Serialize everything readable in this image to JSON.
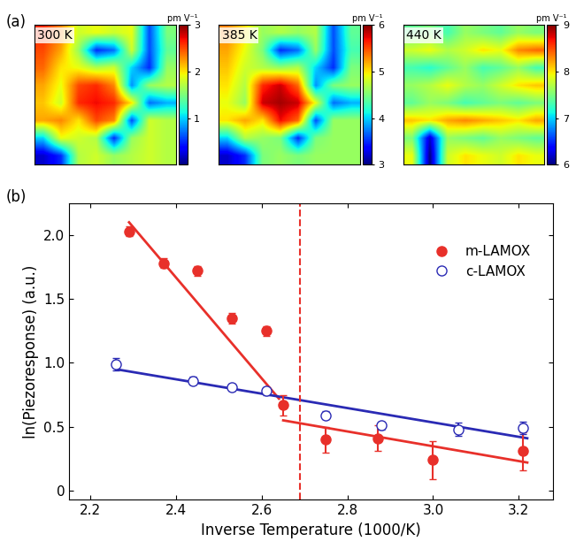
{
  "panel_labels": [
    "(a)",
    "(b)"
  ],
  "chart_data": [
    {
      "type": "heatmap",
      "title": "300 K",
      "colorbar_label": "pm V⁻¹",
      "colorbar_range": [
        0,
        3
      ],
      "colorbar_ticks": [
        1,
        2,
        3
      ],
      "cells": [
        [
          2.6,
          2.3,
          1.8,
          1.9,
          1.8,
          1.9,
          0.6,
          1.5
        ],
        [
          2.5,
          2.2,
          1.6,
          0.5,
          0.7,
          1.8,
          0.6,
          1.4
        ],
        [
          2.4,
          2.0,
          1.9,
          1.7,
          1.8,
          1.0,
          0.5,
          1.6
        ],
        [
          2.2,
          1.9,
          2.5,
          2.6,
          2.3,
          0.8,
          1.6,
          1.7
        ],
        [
          2.1,
          1.8,
          2.6,
          2.7,
          2.6,
          2.0,
          0.7,
          0.9
        ],
        [
          2.2,
          2.3,
          2.0,
          2.5,
          2.3,
          0.6,
          1.8,
          1.7
        ],
        [
          1.0,
          1.9,
          1.8,
          1.7,
          0.5,
          1.6,
          1.8,
          1.7
        ],
        [
          0.2,
          0.5,
          1.7,
          1.8,
          1.6,
          1.7,
          1.8,
          1.7
        ]
      ]
    },
    {
      "type": "heatmap",
      "title": "385 K",
      "colorbar_label": "pm V⁻¹",
      "colorbar_range": [
        3,
        6
      ],
      "colorbar_ticks": [
        3,
        4,
        5,
        6
      ],
      "cells": [
        [
          5.3,
          5.0,
          4.6,
          4.7,
          4.6,
          4.7,
          3.6,
          4.4
        ],
        [
          5.2,
          4.9,
          4.5,
          3.5,
          3.7,
          4.6,
          3.6,
          4.3
        ],
        [
          5.1,
          4.8,
          4.7,
          4.6,
          4.7,
          4.0,
          3.5,
          4.5
        ],
        [
          5.0,
          4.7,
          5.6,
          5.8,
          5.4,
          3.8,
          4.5,
          4.6
        ],
        [
          4.9,
          4.6,
          5.8,
          5.9,
          5.8,
          4.9,
          3.7,
          3.9
        ],
        [
          5.0,
          5.2,
          5.0,
          5.7,
          5.4,
          3.6,
          4.6,
          4.6
        ],
        [
          4.0,
          4.7,
          4.6,
          4.5,
          3.5,
          4.5,
          4.6,
          4.6
        ],
        [
          3.2,
          3.5,
          4.5,
          4.6,
          4.5,
          4.6,
          4.6,
          4.6
        ]
      ]
    },
    {
      "type": "heatmap",
      "title": "440 K",
      "colorbar_label": "pm V⁻¹",
      "colorbar_range": [
        6,
        9
      ],
      "colorbar_ticks": [
        6,
        7,
        8,
        9
      ],
      "cells": [
        [
          7.4,
          7.5,
          7.3,
          7.6,
          7.5,
          7.4,
          7.6,
          7.5
        ],
        [
          7.8,
          7.9,
          7.7,
          7.8,
          8.0,
          7.9,
          8.3,
          8.4
        ],
        [
          7.3,
          7.2,
          7.4,
          7.6,
          7.3,
          7.4,
          7.6,
          7.3
        ],
        [
          7.6,
          7.7,
          7.9,
          7.7,
          7.6,
          7.8,
          8.0,
          8.1
        ],
        [
          7.4,
          7.6,
          7.5,
          7.3,
          7.4,
          7.5,
          7.4,
          7.5
        ],
        [
          8.1,
          8.0,
          8.2,
          8.3,
          8.2,
          8.1,
          8.0,
          8.2
        ],
        [
          7.5,
          6.2,
          7.6,
          7.5,
          7.4,
          7.6,
          7.5,
          7.4
        ],
        [
          7.9,
          6.0,
          7.8,
          8.0,
          7.9,
          7.8,
          8.0,
          7.9
        ]
      ]
    },
    {
      "type": "scatter",
      "x_label": "Inverse Temperature (1000/K)",
      "y_label": "ln(Piezoresponse) (a.u.)",
      "xlim": [
        2.15,
        3.28
      ],
      "ylim": [
        -0.07,
        2.25
      ],
      "xticks": [
        2.2,
        2.4,
        2.6,
        2.8,
        3.0,
        3.2
      ],
      "yticks": [
        0,
        0.5,
        {
          "value": 1,
          "label": "1.0"
        },
        1.5,
        {
          "value": 2,
          "label": "2.0"
        }
      ],
      "legend": "upper right",
      "series": [
        {
          "name": "m-LAMOX",
          "color": "#e8302a",
          "marker": "filled_circle",
          "x": [
            2.29,
            2.37,
            2.45,
            2.53,
            2.61,
            2.65,
            2.75,
            2.87,
            3.0,
            3.21
          ],
          "values": [
            2.03,
            1.78,
            1.72,
            1.35,
            1.25,
            0.67,
            0.4,
            0.41,
            0.24,
            0.31
          ],
          "errors": [
            0.04,
            0.04,
            0.04,
            0.04,
            0.04,
            0.08,
            0.1,
            0.1,
            0.15,
            0.15
          ]
        },
        {
          "name": "c-LAMOX",
          "color": "#2a2ab4",
          "marker": "open_circle",
          "x": [
            2.26,
            2.44,
            2.53,
            2.61,
            2.75,
            2.88,
            3.06,
            3.21
          ],
          "values": [
            0.99,
            0.86,
            0.81,
            0.78,
            0.59,
            0.51,
            0.48,
            0.49
          ],
          "errors": [
            0.05,
            0.03,
            0.03,
            0.03,
            0.03,
            0.03,
            0.05,
            0.05
          ]
        }
      ],
      "fits": [
        {
          "color": "#e8302a",
          "x": [
            2.29,
            2.64
          ],
          "values": [
            2.1,
            0.72
          ]
        },
        {
          "color": "#e8302a",
          "x": [
            2.65,
            3.22
          ],
          "values": [
            0.55,
            0.22
          ]
        },
        {
          "color": "#2a2ab4",
          "x": [
            2.26,
            3.22
          ],
          "values": [
            0.95,
            0.41
          ]
        }
      ],
      "vline": {
        "x": 2.69,
        "color": "#e8302a",
        "line_style": "dashed"
      }
    }
  ]
}
